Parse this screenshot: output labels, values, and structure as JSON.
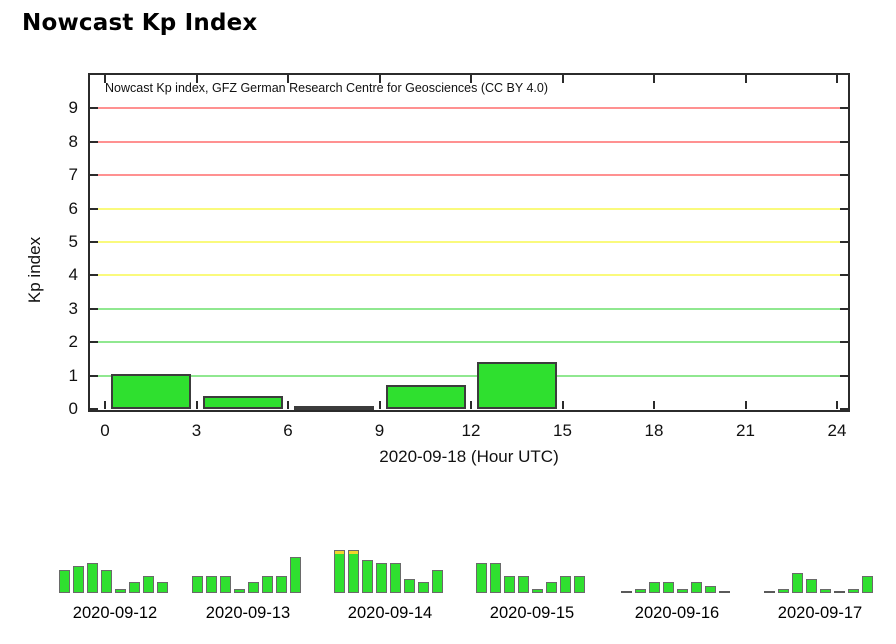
{
  "page_title": "Nowcast Kp Index",
  "chart_data": {
    "type": "bar",
    "title": "Nowcast Kp index, GFZ German Research Centre for Geosciences (CC BY 4.0)",
    "xlabel": "2020-09-18 (Hour UTC)",
    "ylabel": "Kp index",
    "xlim": [
      0,
      24
    ],
    "ylim": [
      0,
      10
    ],
    "x_ticks": [
      0,
      3,
      6,
      9,
      12,
      15,
      18,
      21,
      24
    ],
    "y_ticks": [
      0,
      1,
      2,
      3,
      4,
      5,
      6,
      7,
      8,
      9
    ],
    "grid": true,
    "legend": "none",
    "bars": [
      {
        "hour_start": 0,
        "hour_end": 3,
        "kp": 1.0
      },
      {
        "hour_start": 3,
        "hour_end": 6,
        "kp": 0.333
      },
      {
        "hour_start": 6,
        "hour_end": 9,
        "kp": 0.0
      },
      {
        "hour_start": 9,
        "hour_end": 12,
        "kp": 0.667
      },
      {
        "hour_start": 12,
        "hour_end": 15,
        "kp": 1.333
      }
    ],
    "missing_hours": [
      15,
      18,
      21
    ],
    "history": [
      {
        "date": "2020-09-12",
        "values": [
          2.333,
          2.667,
          3.0,
          2.333,
          0.333,
          1.0,
          1.667,
          1.0
        ]
      },
      {
        "date": "2020-09-13",
        "values": [
          1.667,
          1.667,
          1.667,
          0.333,
          1.0,
          1.667,
          1.667,
          3.667
        ]
      },
      {
        "date": "2020-09-14",
        "values": [
          4.333,
          4.333,
          3.333,
          3.0,
          3.0,
          1.333,
          1.0,
          2.333
        ]
      },
      {
        "date": "2020-09-15",
        "values": [
          3.0,
          3.0,
          1.667,
          1.667,
          0.333,
          1.0,
          1.667,
          1.667
        ]
      },
      {
        "date": "2020-09-16",
        "values": [
          0.0,
          0.333,
          1.0,
          1.0,
          0.333,
          1.0,
          0.667,
          0.0
        ]
      },
      {
        "date": "2020-09-17",
        "values": [
          0.0,
          0.333,
          2.0,
          1.333,
          0.333,
          0.0,
          0.333,
          1.667
        ]
      }
    ],
    "colors": {
      "bar_fill": "#2fe02f",
      "bar_border": "#3c3c3c",
      "mini_bar_border": "#6a6a6a",
      "yellow_tip": "#f2d42c",
      "grid_green": "#90e890",
      "grid_yellow": "#fafa7d",
      "grid_red": "#ff9191",
      "axis": "#2b2b2b",
      "zero_dash": "#5a5a5a"
    },
    "grid_color_rule": {
      "kp_1_to_3": "grid_green",
      "kp_4_to_6": "grid_yellow",
      "kp_7_to_9": "grid_red"
    },
    "yellow_threshold_kp": 4
  }
}
